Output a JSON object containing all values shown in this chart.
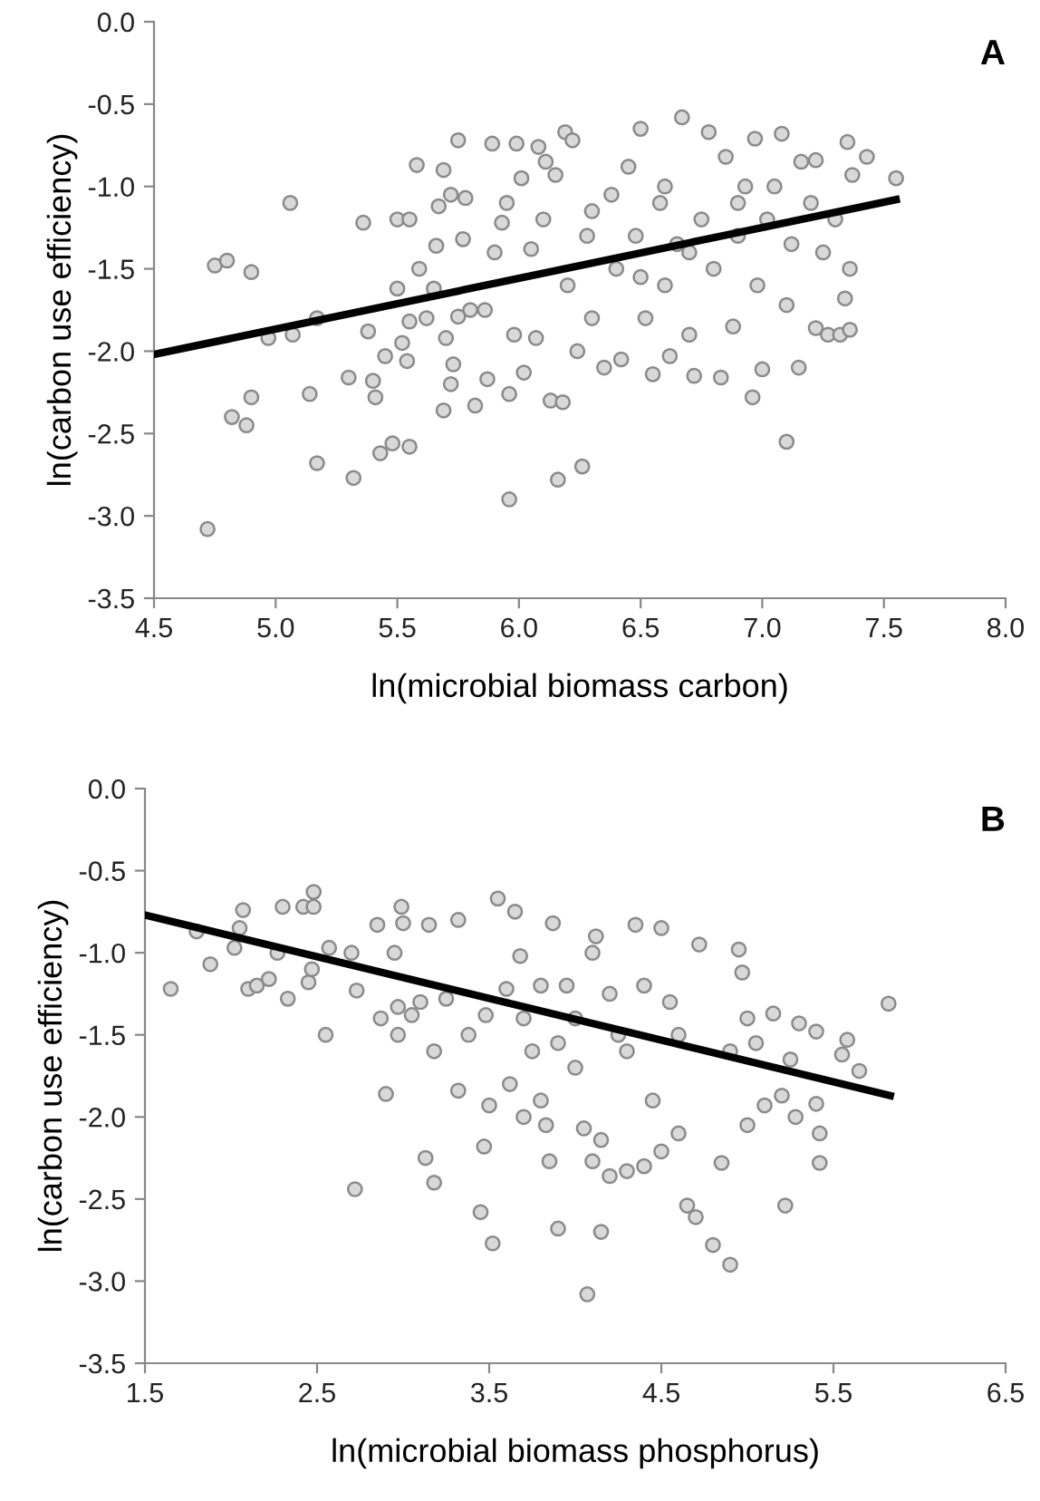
{
  "chart_data": [
    {
      "type": "scatter",
      "title": "A",
      "xlabel": "ln(microbial biomass carbon)",
      "ylabel": "ln(carbon use efficiency)",
      "xlim": [
        4.5,
        8.0
      ],
      "xticks": [
        {
          "value": 4.5,
          "label": "4.5"
        },
        {
          "value": 5.0,
          "label": "5.0"
        },
        {
          "value": 5.5,
          "label": "5.5"
        },
        {
          "value": 6.0,
          "label": "6.0"
        },
        {
          "value": 6.5,
          "label": "6.5"
        },
        {
          "value": 7.0,
          "label": "7.0"
        },
        {
          "value": 7.5,
          "label": "7.5"
        },
        {
          "value": 8.0,
          "label": "8.0"
        }
      ],
      "ylim": [
        -3.5,
        0.0
      ],
      "yticks": [
        {
          "value": -3.5,
          "label": "-3.5"
        },
        {
          "value": -3.0,
          "label": "-3.0"
        },
        {
          "value": -2.5,
          "label": "-2.5"
        },
        {
          "value": -2.0,
          "label": "-2.0"
        },
        {
          "value": -1.5,
          "label": "-1.5"
        },
        {
          "value": -1.0,
          "label": "-1.0"
        },
        {
          "value": -0.5,
          "label": "-0.5"
        },
        {
          "value": 0.0,
          "label": "0.0"
        }
      ],
      "grid": false,
      "legend": false,
      "marker": "circle",
      "series": [
        {
          "color": "#d9d9d9",
          "x": [
            4.72,
            4.75,
            4.8,
            4.82,
            4.88,
            4.9,
            4.9,
            4.97,
            5.06,
            5.07,
            5.14,
            5.17,
            5.17,
            5.3,
            5.32,
            5.36,
            5.38,
            5.4,
            5.41,
            5.43,
            5.45,
            5.48,
            5.5,
            5.5,
            5.52,
            5.54,
            5.55,
            5.55,
            5.55,
            5.58,
            5.59,
            5.62,
            5.65,
            5.66,
            5.67,
            5.69,
            5.69,
            5.7,
            5.72,
            5.72,
            5.73,
            5.75,
            5.75,
            5.77,
            5.78,
            5.8,
            5.82,
            5.86,
            5.87,
            5.89,
            5.9,
            5.93,
            5.95,
            5.96,
            5.96,
            5.98,
            5.99,
            6.01,
            6.02,
            6.05,
            6.07,
            6.08,
            6.1,
            6.11,
            6.13,
            6.15,
            6.16,
            6.18,
            6.19,
            6.2,
            6.22,
            6.24,
            6.26,
            6.28,
            6.3,
            6.35,
            6.38,
            6.4,
            6.42,
            6.45,
            6.48,
            6.5,
            6.52,
            6.55,
            6.58,
            6.6,
            6.62,
            6.65,
            6.67,
            6.7,
            6.72,
            6.75,
            6.78,
            6.8,
            6.83,
            6.85,
            6.88,
            6.9,
            6.93,
            6.96,
            6.97,
            6.98,
            7.0,
            7.02,
            7.05,
            7.08,
            7.1,
            7.1,
            7.12,
            7.15,
            7.16,
            7.2,
            7.22,
            7.22,
            7.25,
            7.27,
            7.3,
            7.32,
            7.34,
            7.35,
            7.36,
            7.36,
            7.37,
            7.43,
            7.55,
            6.6,
            6.7,
            6.9,
            6.5,
            6.3
          ],
          "values": [
            -3.08,
            -1.48,
            -1.45,
            -2.4,
            -2.45,
            -1.52,
            -2.28,
            -1.92,
            -1.1,
            -1.9,
            -2.26,
            -2.68,
            -1.8,
            -2.16,
            -2.77,
            -1.22,
            -1.88,
            -2.18,
            -2.28,
            -2.62,
            -2.03,
            -2.56,
            -1.62,
            -1.2,
            -1.95,
            -2.06,
            -1.2,
            -2.58,
            -1.82,
            -0.87,
            -1.5,
            -1.8,
            -1.62,
            -1.36,
            -1.12,
            -0.9,
            -2.36,
            -1.92,
            -1.05,
            -2.2,
            -2.08,
            -0.72,
            -1.79,
            -1.32,
            -1.07,
            -1.75,
            -2.33,
            -1.75,
            -2.17,
            -0.74,
            -1.4,
            -1.22,
            -1.1,
            -2.26,
            -2.9,
            -1.9,
            -0.74,
            -0.95,
            -2.13,
            -1.38,
            -1.92,
            -0.76,
            -1.2,
            -0.85,
            -2.3,
            -0.93,
            -2.78,
            -2.31,
            -0.67,
            -1.6,
            -0.72,
            -2.0,
            -2.7,
            -1.3,
            -1.8,
            -2.1,
            -1.05,
            -1.5,
            -2.05,
            -0.88,
            -1.3,
            -0.65,
            -1.8,
            -2.14,
            -1.1,
            -1.6,
            -2.03,
            -1.35,
            -0.58,
            -1.9,
            -2.15,
            -1.2,
            -0.67,
            -1.5,
            -2.16,
            -0.82,
            -1.85,
            -1.3,
            -1.0,
            -2.28,
            -0.71,
            -1.6,
            -2.11,
            -1.2,
            -1.0,
            -0.68,
            -2.55,
            -1.72,
            -1.35,
            -2.1,
            -0.85,
            -1.1,
            -0.84,
            -1.86,
            -1.4,
            -1.9,
            -1.2,
            -1.9,
            -1.68,
            -0.73,
            -1.5,
            -1.87,
            -0.93,
            -0.82,
            -0.95,
            -1.0,
            -1.4,
            -1.1,
            -1.55,
            -1.15
          ]
        },
        {
          "type": "line",
          "color": "#000000",
          "marker": "none",
          "line_style": "solid",
          "x": [
            4.5,
            7.55
          ],
          "values": [
            -2.02,
            -1.08
          ]
        }
      ]
    },
    {
      "type": "scatter",
      "title": "B",
      "xlabel": "ln(microbial biomass phosphorus)",
      "ylabel": "ln(carbon use efficiency)",
      "xlim": [
        1.5,
        6.5
      ],
      "xticks": [
        1.5,
        2.5,
        3.5,
        4.5,
        5.5,
        6.5
      ],
      "ylim": [
        -3.5,
        0.0
      ],
      "yticks": [
        {
          "value": -3.5,
          "label": "-3.5"
        },
        {
          "value": -3.0,
          "label": "-3.0"
        },
        {
          "value": -2.5,
          "label": "-2.5"
        },
        {
          "value": -2.0,
          "label": "-2.0"
        },
        {
          "value": -1.5,
          "label": "-1.5"
        },
        {
          "value": -1.0,
          "label": "-1.0"
        },
        {
          "value": -0.5,
          "label": "-0.5"
        },
        {
          "value": 0.0,
          "label": "0.0"
        }
      ],
      "grid": false,
      "legend": false,
      "marker": "circle",
      "series": [
        {
          "color": "#d9d9d9",
          "x": [
            1.65,
            1.8,
            1.88,
            2.02,
            2.05,
            2.07,
            2.1,
            2.15,
            2.22,
            2.27,
            2.3,
            2.33,
            2.42,
            2.45,
            2.47,
            2.48,
            2.48,
            2.55,
            2.57,
            2.7,
            2.72,
            2.73,
            2.85,
            2.87,
            2.9,
            2.95,
            2.97,
            2.97,
            2.99,
            3.0,
            3.05,
            3.1,
            3.13,
            3.15,
            3.18,
            3.18,
            3.25,
            3.32,
            3.32,
            3.38,
            3.45,
            3.47,
            3.48,
            3.5,
            3.52,
            3.55,
            3.6,
            3.62,
            3.65,
            3.68,
            3.7,
            3.75,
            3.8,
            3.83,
            3.85,
            3.87,
            3.9,
            3.95,
            4.0,
            4.05,
            4.07,
            4.1,
            4.12,
            4.15,
            4.15,
            4.2,
            4.25,
            4.3,
            4.35,
            4.4,
            4.45,
            4.5,
            4.5,
            4.55,
            4.6,
            4.65,
            4.7,
            4.72,
            4.8,
            4.85,
            4.9,
            4.9,
            4.95,
            4.97,
            5.0,
            5.0,
            5.05,
            5.1,
            5.15,
            5.2,
            5.22,
            5.25,
            5.28,
            5.3,
            5.4,
            5.4,
            5.42,
            5.42,
            5.55,
            5.58,
            5.65,
            5.82,
            3.8,
            4.0,
            4.2,
            4.3,
            4.1,
            3.9,
            4.4,
            4.6,
            3.7
          ],
          "values": [
            -1.22,
            -0.87,
            -1.07,
            -0.97,
            -0.85,
            -0.74,
            -1.22,
            -1.2,
            -1.16,
            -1.0,
            -0.72,
            -1.28,
            -0.72,
            -1.18,
            -1.1,
            -0.63,
            -0.72,
            -1.5,
            -0.97,
            -1.0,
            -2.44,
            -1.23,
            -0.83,
            -1.4,
            -1.86,
            -1.0,
            -1.33,
            -1.5,
            -0.72,
            -0.82,
            -1.38,
            -1.3,
            -2.25,
            -0.83,
            -1.6,
            -2.4,
            -1.28,
            -1.84,
            -0.8,
            -1.5,
            -2.58,
            -2.18,
            -1.38,
            -1.93,
            -2.77,
            -0.67,
            -1.22,
            -1.8,
            -0.75,
            -1.02,
            -2.0,
            -1.6,
            -1.9,
            -2.05,
            -2.27,
            -0.82,
            -2.68,
            -1.2,
            -1.7,
            -2.07,
            -3.08,
            -2.27,
            -0.9,
            -2.7,
            -2.14,
            -2.36,
            -1.5,
            -2.33,
            -0.83,
            -2.3,
            -1.9,
            -2.21,
            -0.85,
            -1.3,
            -2.1,
            -2.54,
            -2.61,
            -0.95,
            -2.78,
            -2.28,
            -2.9,
            -1.6,
            -0.98,
            -1.12,
            -1.4,
            -2.05,
            -1.55,
            -1.93,
            -1.37,
            -1.87,
            -2.54,
            -1.65,
            -2.0,
            -1.43,
            -1.48,
            -1.92,
            -2.1,
            -2.28,
            -1.62,
            -1.53,
            -1.72,
            -1.31,
            -1.2,
            -1.4,
            -1.25,
            -1.6,
            -1.0,
            -1.55,
            -1.2,
            -1.5,
            -1.4
          ]
        },
        {
          "type": "line",
          "color": "#000000",
          "marker": "none",
          "line_style": "solid",
          "x": [
            1.5,
            5.83
          ],
          "values": [
            -0.77,
            -1.87
          ]
        }
      ]
    }
  ]
}
